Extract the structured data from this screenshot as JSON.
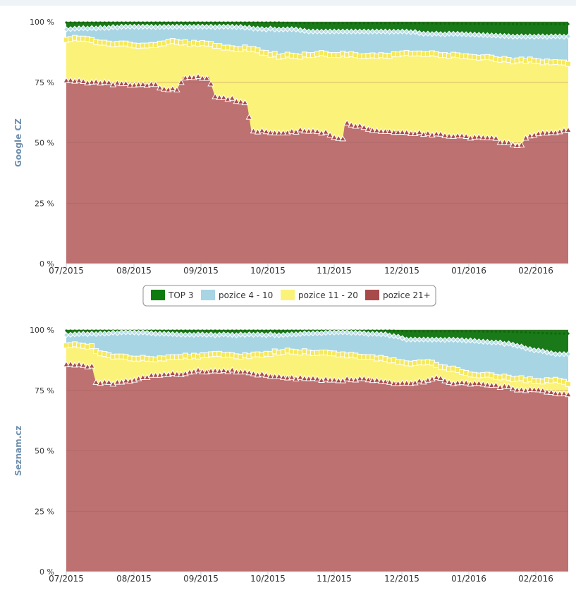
{
  "colors": {
    "top3": "#1a7a1a",
    "pos4_10": "#a8d5e3",
    "pos11_20": "#fbf27a",
    "pos21": "#bd7171",
    "pos21_marker": "#a94a4a",
    "pos11_20_marker": "#f6e95a",
    "grid": "#a56060"
  },
  "legend": {
    "items": [
      {
        "label": "TOP 3",
        "color": "#0f7b0f"
      },
      {
        "label": "pozice 4 - 10",
        "color": "#a8d5e3"
      },
      {
        "label": "pozice 11 - 20",
        "color": "#fbf27a"
      },
      {
        "label": "pozice 21+",
        "color": "#a94a4a"
      }
    ]
  },
  "x_ticks": [
    "07/2015",
    "08/2015",
    "09/2015",
    "10/2015",
    "11/2015",
    "12/2015",
    "01/2016",
    "02/2016"
  ],
  "y_ticks": [
    "0 %",
    "25 %",
    "50 %",
    "75 %",
    "100 %"
  ],
  "chart_data": [
    {
      "type": "area",
      "stacking": "percent",
      "ylabel": "Google CZ",
      "ylim": [
        0,
        100
      ],
      "x_start": "2015-07-01",
      "x_end": "2016-02-22",
      "series": [
        {
          "name": "pozice 21+",
          "keypoints": [
            [
              0,
              76
            ],
            [
              12,
              75
            ],
            [
              30,
              74
            ],
            [
              42,
              74
            ],
            [
              45,
              72
            ],
            [
              52,
              72
            ],
            [
              55,
              77
            ],
            [
              62,
              77
            ],
            [
              67,
              77
            ],
            [
              70,
              69
            ],
            [
              78,
              68
            ],
            [
              82,
              67
            ],
            [
              85,
              66
            ],
            [
              87,
              55
            ],
            [
              100,
              54
            ],
            [
              110,
              55
            ],
            [
              122,
              54
            ],
            [
              126,
              52
            ],
            [
              130,
              52
            ],
            [
              131,
              58
            ],
            [
              138,
              57
            ],
            [
              142,
              56
            ],
            [
              146,
              55
            ],
            [
              165,
              54
            ],
            [
              180,
              53
            ],
            [
              196,
              52
            ],
            [
              201,
              52
            ],
            [
              205,
              50
            ],
            [
              214,
              49
            ],
            [
              216,
              52
            ],
            [
              225,
              54
            ],
            [
              236,
              55
            ]
          ]
        },
        {
          "name": "pozice 11 - 20",
          "keypoints": [
            [
              0,
              93
            ],
            [
              10,
              93
            ],
            [
              15,
              91
            ],
            [
              30,
              91
            ],
            [
              36,
              90
            ],
            [
              44,
              91
            ],
            [
              50,
              92
            ],
            [
              58,
              91
            ],
            [
              62,
              91
            ],
            [
              67,
              91
            ],
            [
              70,
              90
            ],
            [
              78,
              89
            ],
            [
              85,
              89
            ],
            [
              90,
              88
            ],
            [
              95,
              87
            ],
            [
              100,
              86
            ],
            [
              110,
              86
            ],
            [
              120,
              87
            ],
            [
              125,
              86
            ],
            [
              130,
              87
            ],
            [
              138,
              86
            ],
            [
              150,
              86
            ],
            [
              160,
              87
            ],
            [
              170,
              87
            ],
            [
              180,
              86
            ],
            [
              190,
              86
            ],
            [
              200,
              85
            ],
            [
              210,
              84
            ],
            [
              220,
              84
            ],
            [
              230,
              83
            ],
            [
              236,
              83
            ]
          ]
        },
        {
          "name": "pozice 4 - 10",
          "keypoints": [
            [
              0,
              97
            ],
            [
              30,
              98
            ],
            [
              60,
              98
            ],
            [
              80,
              98
            ],
            [
              90,
              97
            ],
            [
              110,
              97
            ],
            [
              114,
              96
            ],
            [
              130,
              96
            ],
            [
              150,
              96
            ],
            [
              160,
              96
            ],
            [
              170,
              95
            ],
            [
              180,
              95
            ],
            [
              190,
              95
            ],
            [
              200,
              95
            ],
            [
              210,
              94
            ],
            [
              220,
              94
            ],
            [
              230,
              94
            ],
            [
              236,
              94
            ]
          ]
        },
        {
          "name": "TOP 3",
          "keypoints": [
            [
              0,
              2
            ],
            [
              100,
              2
            ],
            [
              114,
              4
            ],
            [
              160,
              4
            ],
            [
              210,
              6
            ],
            [
              236,
              6
            ]
          ]
        }
      ]
    },
    {
      "type": "area",
      "stacking": "percent",
      "ylabel": "Seznam.cz",
      "ylim": [
        0,
        100
      ],
      "x_start": "2015-07-01",
      "x_end": "2016-02-22",
      "series": [
        {
          "name": "pozice 21+",
          "keypoints": [
            [
              0,
              86
            ],
            [
              12,
              85
            ],
            [
              14,
              78
            ],
            [
              25,
              78
            ],
            [
              40,
              81
            ],
            [
              55,
              82
            ],
            [
              62,
              83
            ],
            [
              80,
              83
            ],
            [
              95,
              81
            ],
            [
              110,
              80
            ],
            [
              125,
              79
            ],
            [
              140,
              80
            ],
            [
              155,
              78
            ],
            [
              160,
              78
            ],
            [
              170,
              79
            ],
            [
              172,
              80
            ],
            [
              175,
              80
            ],
            [
              182,
              78
            ],
            [
              190,
              78
            ],
            [
              200,
              77
            ],
            [
              210,
              76
            ],
            [
              215,
              75
            ],
            [
              220,
              75
            ],
            [
              230,
              74
            ],
            [
              236,
              73
            ]
          ]
        },
        {
          "name": "pozice 11 - 20",
          "keypoints": [
            [
              0,
              94
            ],
            [
              12,
              93
            ],
            [
              15,
              90
            ],
            [
              25,
              89
            ],
            [
              40,
              88
            ],
            [
              55,
              89
            ],
            [
              62,
              89
            ],
            [
              70,
              90
            ],
            [
              85,
              89
            ],
            [
              100,
              91
            ],
            [
              110,
              91
            ],
            [
              130,
              90
            ],
            [
              140,
              89
            ],
            [
              150,
              88
            ],
            [
              160,
              86
            ],
            [
              170,
              87
            ],
            [
              175,
              85
            ],
            [
              180,
              84
            ],
            [
              190,
              82
            ],
            [
              200,
              81
            ],
            [
              210,
              80
            ],
            [
              220,
              79
            ],
            [
              230,
              79
            ],
            [
              236,
              78
            ]
          ]
        },
        {
          "name": "pozice 4 - 10",
          "keypoints": [
            [
              0,
              98
            ],
            [
              30,
              99
            ],
            [
              60,
              98
            ],
            [
              80,
              98
            ],
            [
              100,
              98
            ],
            [
              130,
              99
            ],
            [
              150,
              98
            ],
            [
              158,
              97
            ],
            [
              170,
              96
            ],
            [
              180,
              96
            ],
            [
              200,
              95
            ],
            [
              210,
              94
            ],
            [
              218,
              92
            ],
            [
              225,
              91
            ],
            [
              236,
              90
            ]
          ]
        },
        {
          "name": "TOP 3",
          "keypoints": [
            [
              0,
              1
            ],
            [
              40,
              1
            ],
            [
              55,
              2
            ],
            [
              100,
              1
            ],
            [
              150,
              1
            ],
            [
              160,
              4
            ],
            [
              195,
              4
            ],
            [
              210,
              5
            ],
            [
              220,
              8
            ],
            [
              230,
              10
            ],
            [
              236,
              10
            ]
          ]
        }
      ]
    }
  ]
}
